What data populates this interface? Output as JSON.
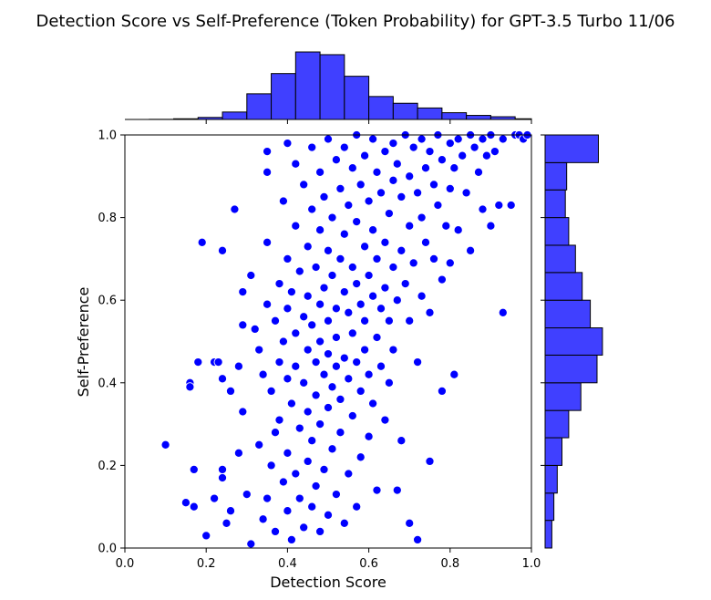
{
  "chart_data": {
    "type": "scatter",
    "title": "Detection Score vs Self-Preference (Token Probability) for GPT-3.5 Turbo 11/06",
    "xlabel": "Detection Score",
    "ylabel": "Self-Preference",
    "xlim": [
      0.0,
      1.0
    ],
    "ylim": [
      0.0,
      1.0
    ],
    "x_ticks": [
      "0.0",
      "0.2",
      "0.4",
      "0.6",
      "0.8",
      "1.0"
    ],
    "y_ticks": [
      "0.0",
      "0.2",
      "0.4",
      "0.6",
      "0.8",
      "1.0"
    ],
    "grid": false,
    "legend": "none",
    "colors": {
      "points": "#0000ff",
      "point_edge": "#ffffff",
      "hist_fill": "#4040ff",
      "hist_edge": "#000000"
    },
    "marginal_x_histogram": {
      "bin_edges": [
        0.0,
        0.06,
        0.12,
        0.18,
        0.24,
        0.3,
        0.36,
        0.42,
        0.48,
        0.54,
        0.6,
        0.66,
        0.72,
        0.78,
        0.84,
        0.9,
        0.96,
        1.02
      ],
      "relative_counts": [
        0.0,
        0.002,
        0.01,
        0.03,
        0.11,
        0.38,
        0.68,
        1.0,
        0.96,
        0.64,
        0.34,
        0.24,
        0.17,
        0.1,
        0.06,
        0.04,
        0.01
      ]
    },
    "marginal_y_histogram": {
      "bin_edges": [
        0.0,
        0.067,
        0.133,
        0.2,
        0.267,
        0.333,
        0.4,
        0.467,
        0.533,
        0.6,
        0.667,
        0.733,
        0.8,
        0.867,
        0.933,
        1.0
      ],
      "relative_counts": [
        0.1,
        0.13,
        0.18,
        0.25,
        0.35,
        0.53,
        0.77,
        0.85,
        0.67,
        0.55,
        0.45,
        0.35,
        0.3,
        0.32,
        0.79
      ]
    },
    "points": [
      [
        0.1,
        0.25
      ],
      [
        0.15,
        0.11
      ],
      [
        0.17,
        0.1
      ],
      [
        0.16,
        0.4
      ],
      [
        0.16,
        0.39
      ],
      [
        0.18,
        0.45
      ],
      [
        0.17,
        0.19
      ],
      [
        0.19,
        0.74
      ],
      [
        0.2,
        0.03
      ],
      [
        0.22,
        0.45
      ],
      [
        0.22,
        0.12
      ],
      [
        0.23,
        0.45
      ],
      [
        0.24,
        0.72
      ],
      [
        0.24,
        0.41
      ],
      [
        0.24,
        0.19
      ],
      [
        0.24,
        0.17
      ],
      [
        0.25,
        0.06
      ],
      [
        0.26,
        0.38
      ],
      [
        0.26,
        0.09
      ],
      [
        0.27,
        0.82
      ],
      [
        0.28,
        0.44
      ],
      [
        0.28,
        0.23
      ],
      [
        0.29,
        0.54
      ],
      [
        0.29,
        0.62
      ],
      [
        0.29,
        0.33
      ],
      [
        0.3,
        0.13
      ],
      [
        0.31,
        0.01
      ],
      [
        0.31,
        0.66
      ],
      [
        0.32,
        0.53
      ],
      [
        0.33,
        0.48
      ],
      [
        0.33,
        0.25
      ],
      [
        0.34,
        0.42
      ],
      [
        0.34,
        0.07
      ],
      [
        0.35,
        0.59
      ],
      [
        0.35,
        0.96
      ],
      [
        0.35,
        0.91
      ],
      [
        0.35,
        0.74
      ],
      [
        0.35,
        0.12
      ],
      [
        0.36,
        0.38
      ],
      [
        0.36,
        0.2
      ],
      [
        0.37,
        0.55
      ],
      [
        0.37,
        0.28
      ],
      [
        0.37,
        0.04
      ],
      [
        0.38,
        0.64
      ],
      [
        0.38,
        0.45
      ],
      [
        0.38,
        0.31
      ],
      [
        0.39,
        0.84
      ],
      [
        0.39,
        0.5
      ],
      [
        0.39,
        0.16
      ],
      [
        0.4,
        0.98
      ],
      [
        0.4,
        0.7
      ],
      [
        0.4,
        0.58
      ],
      [
        0.4,
        0.41
      ],
      [
        0.4,
        0.23
      ],
      [
        0.4,
        0.09
      ],
      [
        0.41,
        0.62
      ],
      [
        0.41,
        0.35
      ],
      [
        0.41,
        0.02
      ],
      [
        0.42,
        0.93
      ],
      [
        0.42,
        0.78
      ],
      [
        0.42,
        0.52
      ],
      [
        0.42,
        0.44
      ],
      [
        0.42,
        0.18
      ],
      [
        0.43,
        0.67
      ],
      [
        0.43,
        0.29
      ],
      [
        0.43,
        0.12
      ],
      [
        0.44,
        0.88
      ],
      [
        0.44,
        0.56
      ],
      [
        0.44,
        0.4
      ],
      [
        0.44,
        0.05
      ],
      [
        0.45,
        0.73
      ],
      [
        0.45,
        0.61
      ],
      [
        0.45,
        0.48
      ],
      [
        0.45,
        0.33
      ],
      [
        0.45,
        0.21
      ],
      [
        0.46,
        0.97
      ],
      [
        0.46,
        0.82
      ],
      [
        0.46,
        0.54
      ],
      [
        0.46,
        0.26
      ],
      [
        0.46,
        0.1
      ],
      [
        0.47,
        0.68
      ],
      [
        0.47,
        0.45
      ],
      [
        0.47,
        0.37
      ],
      [
        0.47,
        0.15
      ],
      [
        0.48,
        0.91
      ],
      [
        0.48,
        0.77
      ],
      [
        0.48,
        0.59
      ],
      [
        0.48,
        0.5
      ],
      [
        0.48,
        0.3
      ],
      [
        0.48,
        0.04
      ],
      [
        0.49,
        0.85
      ],
      [
        0.49,
        0.63
      ],
      [
        0.49,
        0.42
      ],
      [
        0.49,
        0.19
      ],
      [
        0.5,
        0.99
      ],
      [
        0.5,
        0.72
      ],
      [
        0.5,
        0.55
      ],
      [
        0.5,
        0.47
      ],
      [
        0.5,
        0.34
      ],
      [
        0.5,
        0.08
      ],
      [
        0.51,
        0.8
      ],
      [
        0.51,
        0.66
      ],
      [
        0.51,
        0.39
      ],
      [
        0.51,
        0.24
      ],
      [
        0.52,
        0.94
      ],
      [
        0.52,
        0.58
      ],
      [
        0.52,
        0.51
      ],
      [
        0.52,
        0.44
      ],
      [
        0.52,
        0.13
      ],
      [
        0.53,
        0.87
      ],
      [
        0.53,
        0.7
      ],
      [
        0.53,
        0.36
      ],
      [
        0.53,
        0.28
      ],
      [
        0.54,
        0.97
      ],
      [
        0.54,
        0.76
      ],
      [
        0.54,
        0.62
      ],
      [
        0.54,
        0.46
      ],
      [
        0.54,
        0.06
      ],
      [
        0.55,
        0.83
      ],
      [
        0.55,
        0.57
      ],
      [
        0.55,
        0.41
      ],
      [
        0.55,
        0.18
      ],
      [
        0.56,
        0.92
      ],
      [
        0.56,
        0.68
      ],
      [
        0.56,
        0.52
      ],
      [
        0.56,
        0.32
      ],
      [
        0.57,
        1.0
      ],
      [
        0.57,
        0.79
      ],
      [
        0.57,
        0.64
      ],
      [
        0.57,
        0.45
      ],
      [
        0.57,
        0.1
      ],
      [
        0.58,
        0.88
      ],
      [
        0.58,
        0.59
      ],
      [
        0.58,
        0.38
      ],
      [
        0.58,
        0.22
      ],
      [
        0.59,
        0.95
      ],
      [
        0.59,
        0.73
      ],
      [
        0.59,
        0.55
      ],
      [
        0.59,
        0.48
      ],
      [
        0.6,
        0.84
      ],
      [
        0.6,
        0.66
      ],
      [
        0.6,
        0.42
      ],
      [
        0.6,
        0.27
      ],
      [
        0.61,
        0.99
      ],
      [
        0.61,
        0.77
      ],
      [
        0.61,
        0.61
      ],
      [
        0.61,
        0.35
      ],
      [
        0.62,
        0.91
      ],
      [
        0.62,
        0.7
      ],
      [
        0.62,
        0.51
      ],
      [
        0.62,
        0.14
      ],
      [
        0.63,
        0.86
      ],
      [
        0.63,
        0.58
      ],
      [
        0.63,
        0.44
      ],
      [
        0.64,
        0.96
      ],
      [
        0.64,
        0.74
      ],
      [
        0.64,
        0.63
      ],
      [
        0.64,
        0.31
      ],
      [
        0.65,
        0.81
      ],
      [
        0.65,
        0.55
      ],
      [
        0.65,
        0.4
      ],
      [
        0.66,
        0.98
      ],
      [
        0.66,
        0.89
      ],
      [
        0.66,
        0.68
      ],
      [
        0.66,
        0.48
      ],
      [
        0.67,
        0.93
      ],
      [
        0.67,
        0.6
      ],
      [
        0.67,
        0.14
      ],
      [
        0.68,
        0.85
      ],
      [
        0.68,
        0.72
      ],
      [
        0.68,
        0.26
      ],
      [
        0.69,
        1.0
      ],
      [
        0.69,
        0.64
      ],
      [
        0.7,
        0.9
      ],
      [
        0.7,
        0.78
      ],
      [
        0.7,
        0.55
      ],
      [
        0.7,
        0.06
      ],
      [
        0.71,
        0.97
      ],
      [
        0.71,
        0.69
      ],
      [
        0.72,
        0.86
      ],
      [
        0.72,
        0.45
      ],
      [
        0.72,
        0.02
      ],
      [
        0.73,
        0.99
      ],
      [
        0.73,
        0.8
      ],
      [
        0.73,
        0.61
      ],
      [
        0.74,
        0.92
      ],
      [
        0.74,
        0.74
      ],
      [
        0.75,
        0.96
      ],
      [
        0.75,
        0.57
      ],
      [
        0.75,
        0.21
      ],
      [
        0.76,
        0.88
      ],
      [
        0.76,
        0.7
      ],
      [
        0.77,
        1.0
      ],
      [
        0.77,
        0.83
      ],
      [
        0.78,
        0.94
      ],
      [
        0.78,
        0.65
      ],
      [
        0.78,
        0.38
      ],
      [
        0.79,
        0.78
      ],
      [
        0.8,
        0.98
      ],
      [
        0.8,
        0.87
      ],
      [
        0.8,
        0.69
      ],
      [
        0.81,
        0.42
      ],
      [
        0.81,
        0.92
      ],
      [
        0.82,
        0.99
      ],
      [
        0.82,
        0.77
      ],
      [
        0.83,
        0.95
      ],
      [
        0.84,
        0.86
      ],
      [
        0.85,
        1.0
      ],
      [
        0.85,
        0.72
      ],
      [
        0.86,
        0.97
      ],
      [
        0.87,
        0.91
      ],
      [
        0.88,
        0.99
      ],
      [
        0.88,
        0.82
      ],
      [
        0.89,
        0.95
      ],
      [
        0.9,
        0.78
      ],
      [
        0.9,
        1.0
      ],
      [
        0.91,
        0.96
      ],
      [
        0.92,
        0.83
      ],
      [
        0.93,
        0.57
      ],
      [
        0.93,
        0.99
      ],
      [
        0.95,
        0.83
      ],
      [
        0.96,
        1.0
      ],
      [
        0.97,
        1.0
      ],
      [
        0.98,
        0.99
      ],
      [
        0.99,
        1.0
      ]
    ]
  }
}
